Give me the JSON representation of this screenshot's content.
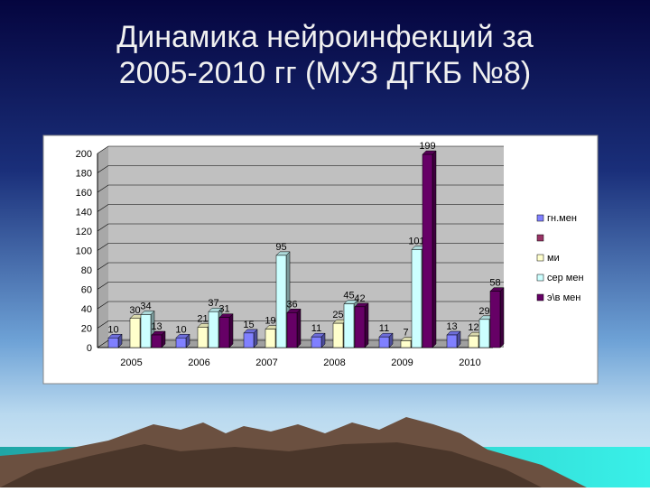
{
  "chart_data": {
    "type": "bar",
    "title": "Динамика нейроинфекций за 2005-2010 гг (МУЗ ДГКБ №8)",
    "categories": [
      "2005",
      "2006",
      "2007",
      "2008",
      "2009",
      "2010"
    ],
    "series": [
      {
        "name": "гн.мен",
        "color": "#8080ff",
        "values": [
          10,
          10,
          15,
          11,
          11,
          13
        ]
      },
      {
        "name": null,
        "color": "#993366",
        "values": [
          null,
          null,
          null,
          null,
          null,
          null
        ]
      },
      {
        "name": "ми",
        "color": "#ffffcc",
        "values": [
          30,
          21,
          19,
          25,
          7,
          12
        ]
      },
      {
        "name": "сер мен",
        "color": "#ccffff",
        "values": [
          34,
          37,
          95,
          45,
          101,
          29
        ]
      },
      {
        "name": "э\\в мен",
        "color": "#660066",
        "values": [
          13,
          31,
          36,
          42,
          199,
          58
        ]
      }
    ],
    "ylim": [
      0,
      200
    ],
    "yticks": [
      0,
      20,
      40,
      60,
      80,
      100,
      120,
      140,
      160,
      180,
      200
    ],
    "grid": true,
    "legend": "right"
  }
}
